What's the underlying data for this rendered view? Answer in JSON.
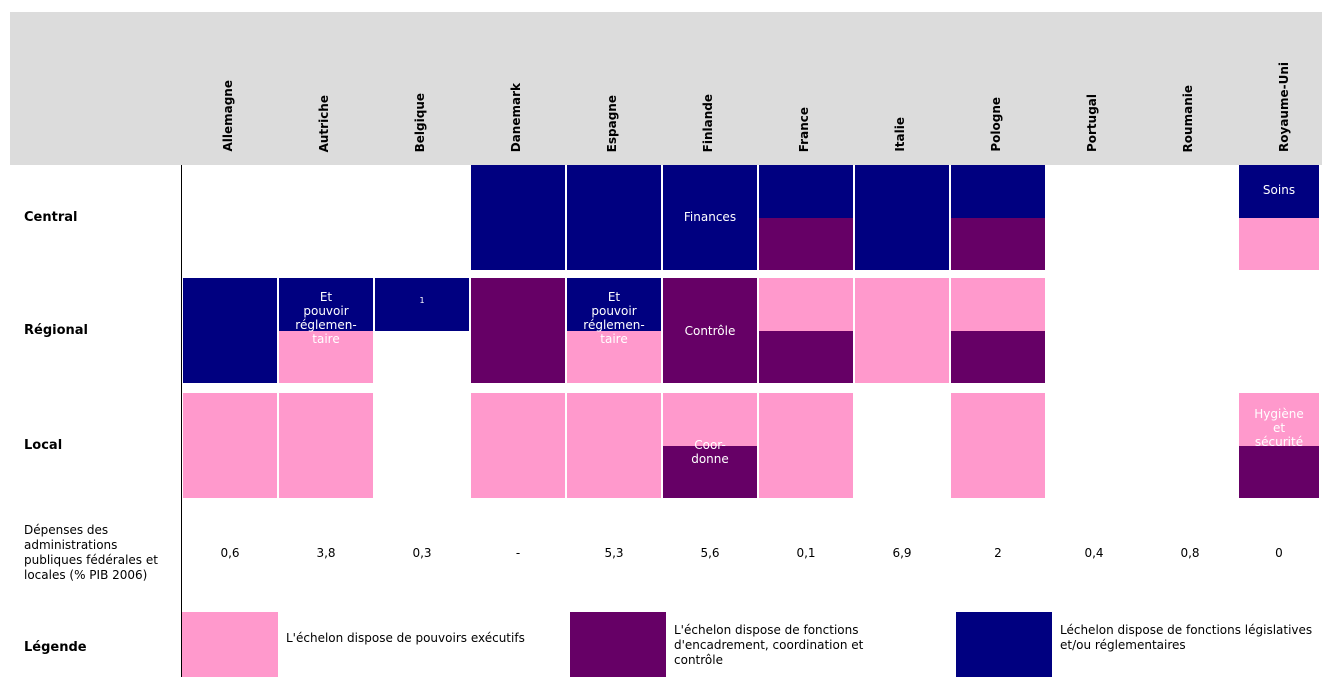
{
  "columns": [
    "Allemagne",
    "Autriche",
    "Belgique",
    "Danemark",
    "Espagne",
    "Finlande",
    "France",
    "Italie",
    "Pologne",
    "Portugal",
    "Roumanie",
    "Royaume-Uni"
  ],
  "rows": [
    {
      "label": "Central",
      "cells": [
        [
          null,
          null
        ],
        [
          null,
          null
        ],
        [
          null,
          null
        ],
        [
          "#000080",
          "#000080"
        ],
        [
          "#000080",
          "#000080"
        ],
        [
          "#000080",
          "#000080"
        ],
        [
          "#000080",
          "#660066"
        ],
        [
          "#000080",
          "#000080"
        ],
        [
          "#000080",
          "#660066"
        ],
        [
          null,
          null
        ],
        [
          null,
          null
        ],
        [
          "#000080",
          "#ff99cc"
        ]
      ]
    },
    {
      "label": "Régional",
      "cells": [
        [
          "#000080",
          "#000080"
        ],
        [
          "#000080",
          "#ff99cc"
        ],
        [
          "#000080",
          null
        ],
        [
          "#660066",
          "#660066"
        ],
        [
          "#000080",
          "#ff99cc"
        ],
        [
          "#660066",
          "#660066"
        ],
        [
          "#ff99cc",
          "#660066"
        ],
        [
          "#ff99cc",
          "#ff99cc"
        ],
        [
          "#ff99cc",
          "#660066"
        ],
        [
          null,
          null
        ],
        [
          null,
          null
        ],
        [
          null,
          null
        ]
      ]
    },
    {
      "label": "Local",
      "cells": [
        [
          "#ff99cc",
          "#ff99cc"
        ],
        [
          "#ff99cc",
          "#ff99cc"
        ],
        [
          null,
          null
        ],
        [
          "#ff99cc",
          "#ff99cc"
        ],
        [
          "#ff99cc",
          "#ff99cc"
        ],
        [
          "#ff99cc",
          "#660066"
        ],
        [
          "#ff99cc",
          "#ff99cc"
        ],
        [
          null,
          null
        ],
        [
          "#ff99cc",
          "#ff99cc"
        ],
        [
          null,
          null
        ],
        [
          null,
          null
        ],
        [
          "#ff99cc",
          "#660066"
        ]
      ]
    }
  ],
  "cell_texts": [
    "Finances",
    "Soins",
    "Et\npouvoir\nréglemen-\ntaire",
    "1",
    "Et\npouvoir\nréglemen-\ntaire",
    "Contrôle",
    "Coor-\ndonne",
    "Hygiène\net\nsécurité"
  ],
  "spending": {
    "label": "Dépenses des administrations publiques fédérales et locales (% PIB 2006)",
    "values": [
      "0,6",
      "3,8",
      "0,3",
      "-",
      "5,3",
      "5,6",
      "0,1",
      "6,9",
      "2",
      "0,4",
      "0,8",
      "0"
    ]
  },
  "legend": {
    "label": "Légende",
    "items": [
      {
        "color": "#ff99cc",
        "text": "L'échelon dispose de pouvoirs exécutifs"
      },
      {
        "color": "#660066",
        "text": "L'échelon dispose de fonctions d'encadrement, coordination et contrôle"
      },
      {
        "color": "#000080",
        "text": "Léchelon dispose de fonctions législatives et/ou réglementaires"
      }
    ]
  }
}
